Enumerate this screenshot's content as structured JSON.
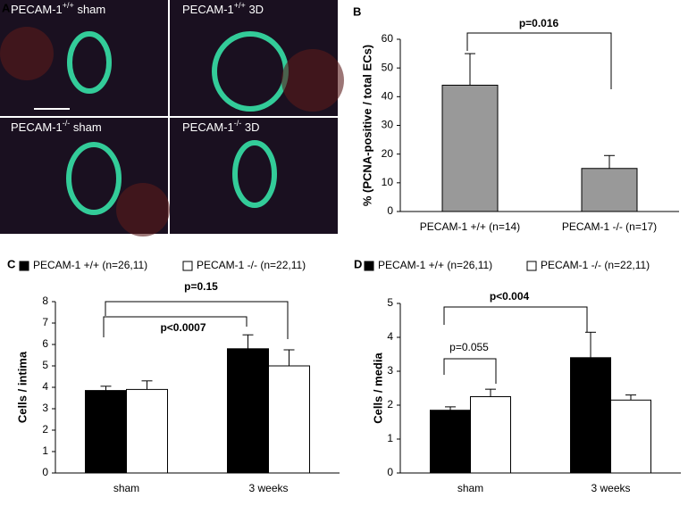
{
  "panel_a": {
    "label": "A",
    "images": [
      {
        "name": "PECAM-1",
        "genotype": "+/+",
        "condition": "sham"
      },
      {
        "name": "PECAM-1",
        "genotype": "+/+",
        "condition": "3D"
      },
      {
        "name": "PECAM-1",
        "genotype": "-/-",
        "condition": "sham"
      },
      {
        "name": "PECAM-1",
        "genotype": "-/-",
        "condition": "3D"
      }
    ]
  },
  "chart_data": [
    {
      "type": "bar",
      "panel": "B",
      "ylabel": "% (PCNA-positive / total ECs)",
      "categories": [
        "PECAM-1 +/+ (n=14)",
        "PECAM-1 -/- (n=17)"
      ],
      "values": [
        44,
        15
      ],
      "errors": [
        11,
        4.5
      ],
      "color": "#999999",
      "ylim": [
        0,
        60
      ],
      "yticks": [
        0,
        10,
        20,
        30,
        40,
        50,
        60
      ],
      "annotations": [
        "p=0.016"
      ]
    },
    {
      "type": "grouped-bar",
      "panel": "C",
      "ylabel": "Cells / intima",
      "categories": [
        "sham",
        "3 weeks"
      ],
      "series": [
        {
          "name": "PECAM-1 +/+ (n=26,11)",
          "color": "#000000",
          "values": [
            3.85,
            5.8
          ],
          "errors": [
            0.2,
            0.65
          ]
        },
        {
          "name": "PECAM-1 -/- (n=22,11)",
          "color": "#ffffff",
          "values": [
            3.9,
            5.0
          ],
          "errors": [
            0.4,
            0.75
          ]
        }
      ],
      "ylim": [
        0,
        8
      ],
      "yticks": [
        0,
        1,
        2,
        3,
        4,
        5,
        6,
        7,
        8
      ],
      "annotations": [
        "p=0.15",
        "p<0.0007"
      ]
    },
    {
      "type": "grouped-bar",
      "panel": "D",
      "ylabel": "Cells / media",
      "categories": [
        "sham",
        "3 weeks"
      ],
      "series": [
        {
          "name": "PECAM-1 +/+ (n=26,11)",
          "color": "#000000",
          "values": [
            1.85,
            3.4
          ],
          "errors": [
            0.1,
            0.75
          ]
        },
        {
          "name": "PECAM-1 -/- (n=22,11)",
          "color": "#ffffff",
          "values": [
            2.25,
            2.15
          ],
          "errors": [
            0.22,
            0.15
          ]
        }
      ],
      "ylim": [
        0,
        5
      ],
      "yticks": [
        0,
        1,
        2,
        3,
        4,
        5
      ],
      "annotations": [
        "p=0.055",
        "p<0.004"
      ]
    }
  ]
}
